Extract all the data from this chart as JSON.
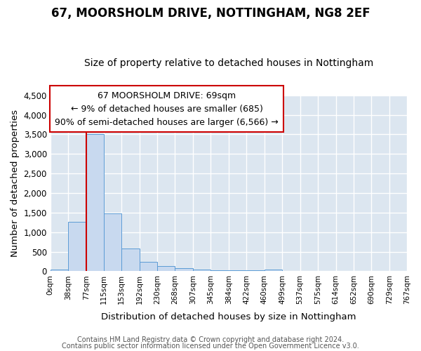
{
  "title": "67, MOORSHOLM DRIVE, NOTTINGHAM, NG8 2EF",
  "subtitle": "Size of property relative to detached houses in Nottingham",
  "xlabel": "Distribution of detached houses by size in Nottingham",
  "ylabel": "Number of detached properties",
  "bar_color": "#c8d9ef",
  "bar_edge_color": "#5b9bd5",
  "bin_edges": [
    0,
    38,
    77,
    115,
    153,
    192,
    230,
    268,
    307,
    345,
    384,
    422,
    460,
    499,
    537,
    575,
    614,
    652,
    690,
    729,
    767
  ],
  "bar_heights": [
    50,
    1270,
    3500,
    1480,
    575,
    240,
    130,
    80,
    45,
    30,
    30,
    30,
    50,
    4,
    2,
    1,
    1,
    1,
    1,
    1
  ],
  "tick_labels": [
    "0sqm",
    "38sqm",
    "77sqm",
    "115sqm",
    "153sqm",
    "192sqm",
    "230sqm",
    "268sqm",
    "307sqm",
    "345sqm",
    "384sqm",
    "422sqm",
    "460sqm",
    "499sqm",
    "537sqm",
    "575sqm",
    "614sqm",
    "652sqm",
    "690sqm",
    "729sqm",
    "767sqm"
  ],
  "ylim": [
    0,
    4500
  ],
  "yticks": [
    0,
    500,
    1000,
    1500,
    2000,
    2500,
    3000,
    3500,
    4000,
    4500
  ],
  "vline_x": 77,
  "vline_color": "#cc0000",
  "annotation_text": "67 MOORSHOLM DRIVE: 69sqm\n← 9% of detached houses are smaller (685)\n90% of semi-detached houses are larger (6,566) →",
  "annotation_box_color": "#cc0000",
  "annotation_text_color": "#000000",
  "annotation_fontsize": 9,
  "background_color": "#dce6f0",
  "plot_bg_color": "#dce6f0",
  "fig_bg_color": "#ffffff",
  "grid_color": "#ffffff",
  "title_fontsize": 12,
  "subtitle_fontsize": 10,
  "footer_line1": "Contains HM Land Registry data © Crown copyright and database right 2024.",
  "footer_line2": "Contains public sector information licensed under the Open Government Licence v3.0.",
  "footer_fontsize": 7
}
